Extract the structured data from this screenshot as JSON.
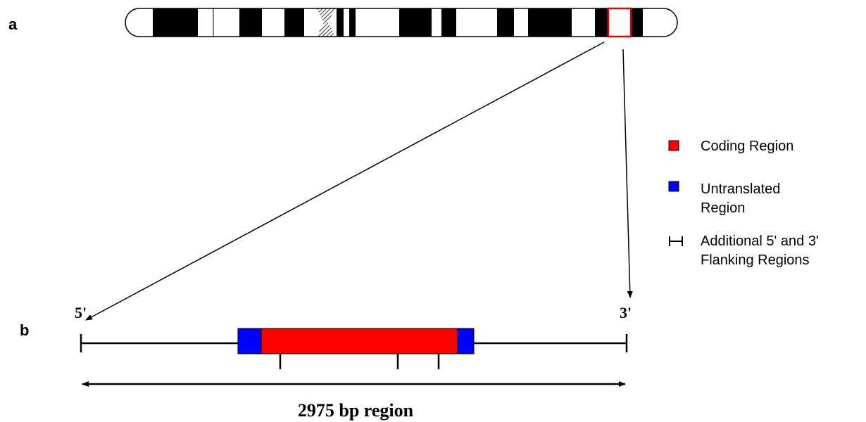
{
  "panels": {
    "a": "a",
    "b": "b"
  },
  "gene": {
    "five_prime": "5'",
    "three_prime": "3'",
    "region_label": "2975 bp region"
  },
  "legend": [
    {
      "lines": [
        "Coding Region"
      ]
    },
    {
      "lines": [
        "Untranslated",
        "Region"
      ]
    },
    {
      "lines": [
        "Additional 5' and 3'",
        "Flanking Regions"
      ]
    }
  ]
}
